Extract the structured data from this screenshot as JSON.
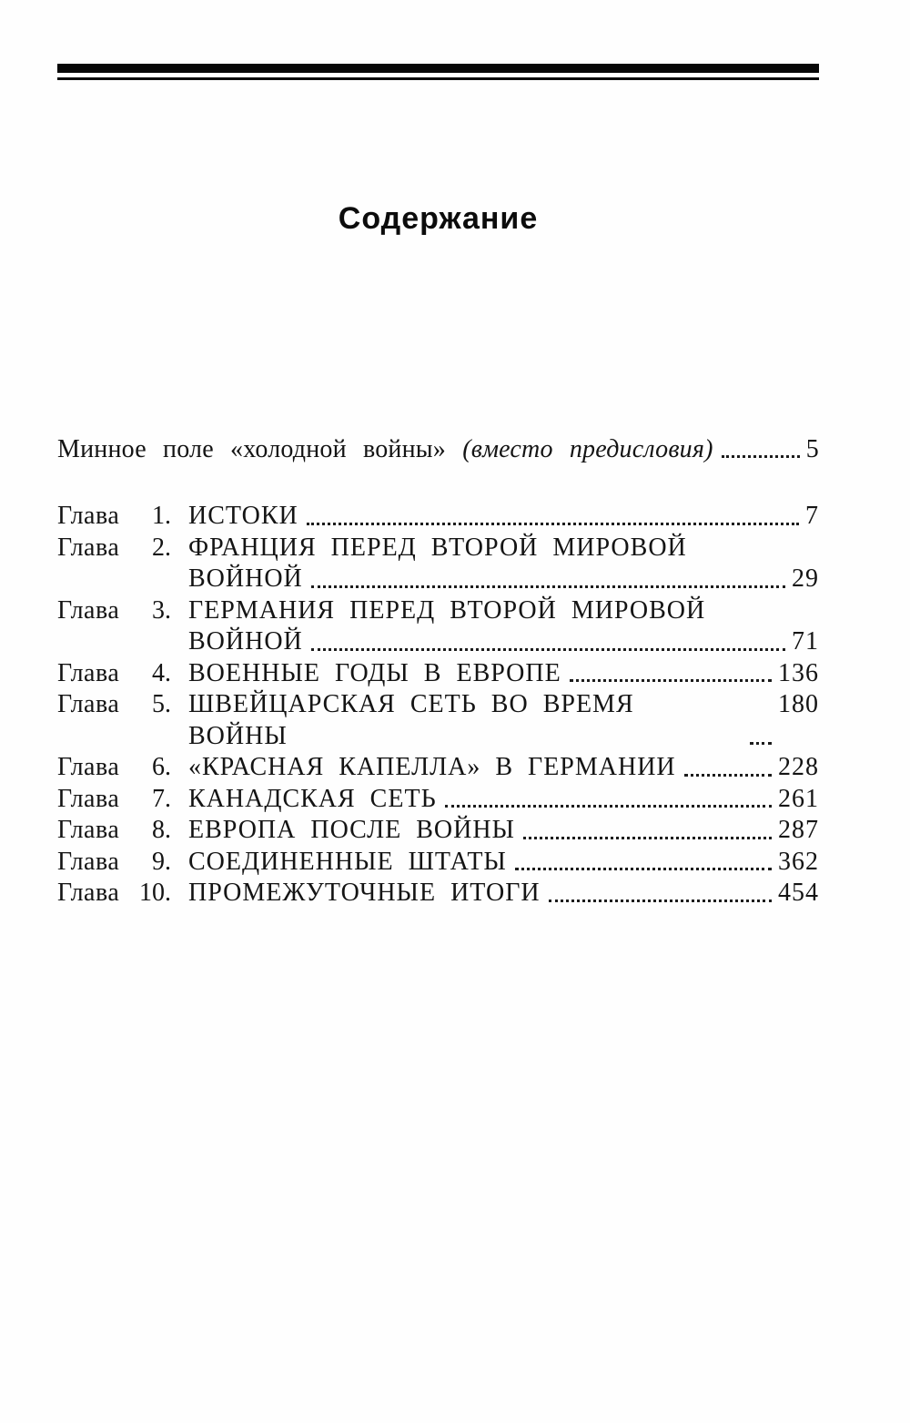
{
  "document": {
    "title": "Содержание",
    "preface": {
      "text": "Минное поле «холодной войны»",
      "note": "(вместо предисловия)",
      "page": "5"
    },
    "chapter_word": "Глава",
    "chapters": [
      {
        "number": "1.",
        "title": "ИСТОКИ",
        "page": "7"
      },
      {
        "number": "2.",
        "title": "ФРАНЦИЯ ПЕРЕД ВТОРОЙ МИРОВОЙ",
        "title_line2": "ВОЙНОЙ",
        "page": "29"
      },
      {
        "number": "3.",
        "title": "ГЕРМАНИЯ ПЕРЕД ВТОРОЙ МИРОВОЙ",
        "title_line2": "ВОЙНОЙ",
        "page": "71"
      },
      {
        "number": "4.",
        "title": "ВОЕННЫЕ ГОДЫ В ЕВРОПЕ",
        "page": "136"
      },
      {
        "number": "5.",
        "title": "ШВЕЙЦАРСКАЯ СЕТЬ ВО ВРЕМЯ ВОЙНЫ",
        "page": "180"
      },
      {
        "number": "6.",
        "title": "«КРАСНАЯ КАПЕЛЛА» В ГЕРМАНИИ",
        "page": "228"
      },
      {
        "number": "7.",
        "title": "КАНАДСКАЯ СЕТЬ",
        "page": "261"
      },
      {
        "number": "8.",
        "title": "ЕВРОПА ПОСЛЕ ВОЙНЫ",
        "page": "287"
      },
      {
        "number": "9.",
        "title": "СОЕДИНЕННЫЕ ШТАТЫ",
        "page": "362"
      },
      {
        "number": "10.",
        "title": "ПРОМЕЖУТОЧНЫЕ ИТОГИ",
        "page": "454"
      }
    ]
  }
}
